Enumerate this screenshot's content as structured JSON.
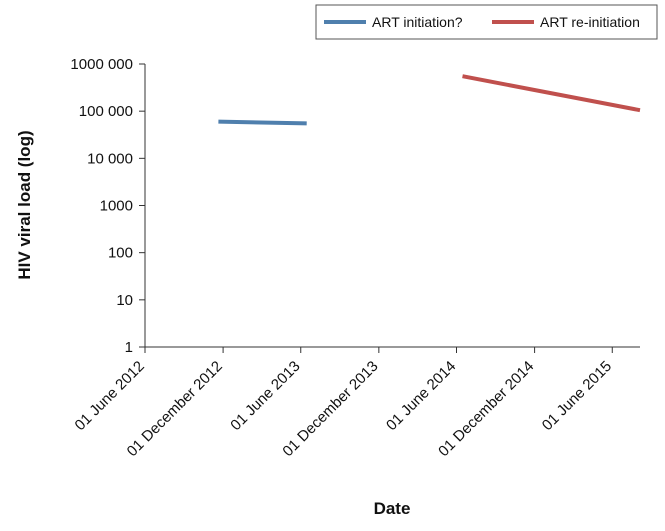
{
  "chart_data": {
    "type": "line",
    "xlabel": "Date",
    "ylabel": "HIV viral load (log)",
    "y_scale": "log",
    "ylim": [
      1,
      1000000
    ],
    "yticks": [
      1,
      10,
      100,
      1000,
      10000,
      100000,
      1000000
    ],
    "ytick_labels": [
      "1",
      "10",
      "100",
      "1000",
      "10 000",
      "100 000",
      "1000 000"
    ],
    "xticks": [
      "2012-06-01",
      "2012-12-01",
      "2013-06-01",
      "2013-12-01",
      "2014-06-01",
      "2014-12-01",
      "2015-06-01"
    ],
    "xtick_labels": [
      "01 June 2012",
      "01 December 2012",
      "01 June 2013",
      "01 December 2013",
      "01 June 2014",
      "01 December 2014",
      "01 June 2015"
    ],
    "xlim": [
      "2012-06-01",
      "2015-08-05"
    ],
    "grid": false,
    "legend_position": "top-right",
    "series": [
      {
        "name": "ART initiation?",
        "color": "#4f7fad",
        "points": [
          {
            "x": "2012-11-20",
            "y": 60000
          },
          {
            "x": "2013-06-15",
            "y": 55000
          }
        ]
      },
      {
        "name": "ART re-initiation",
        "color": "#c0504d",
        "points": [
          {
            "x": "2014-06-15",
            "y": 550000
          },
          {
            "x": "2015-08-05",
            "y": 105000
          }
        ]
      }
    ]
  }
}
